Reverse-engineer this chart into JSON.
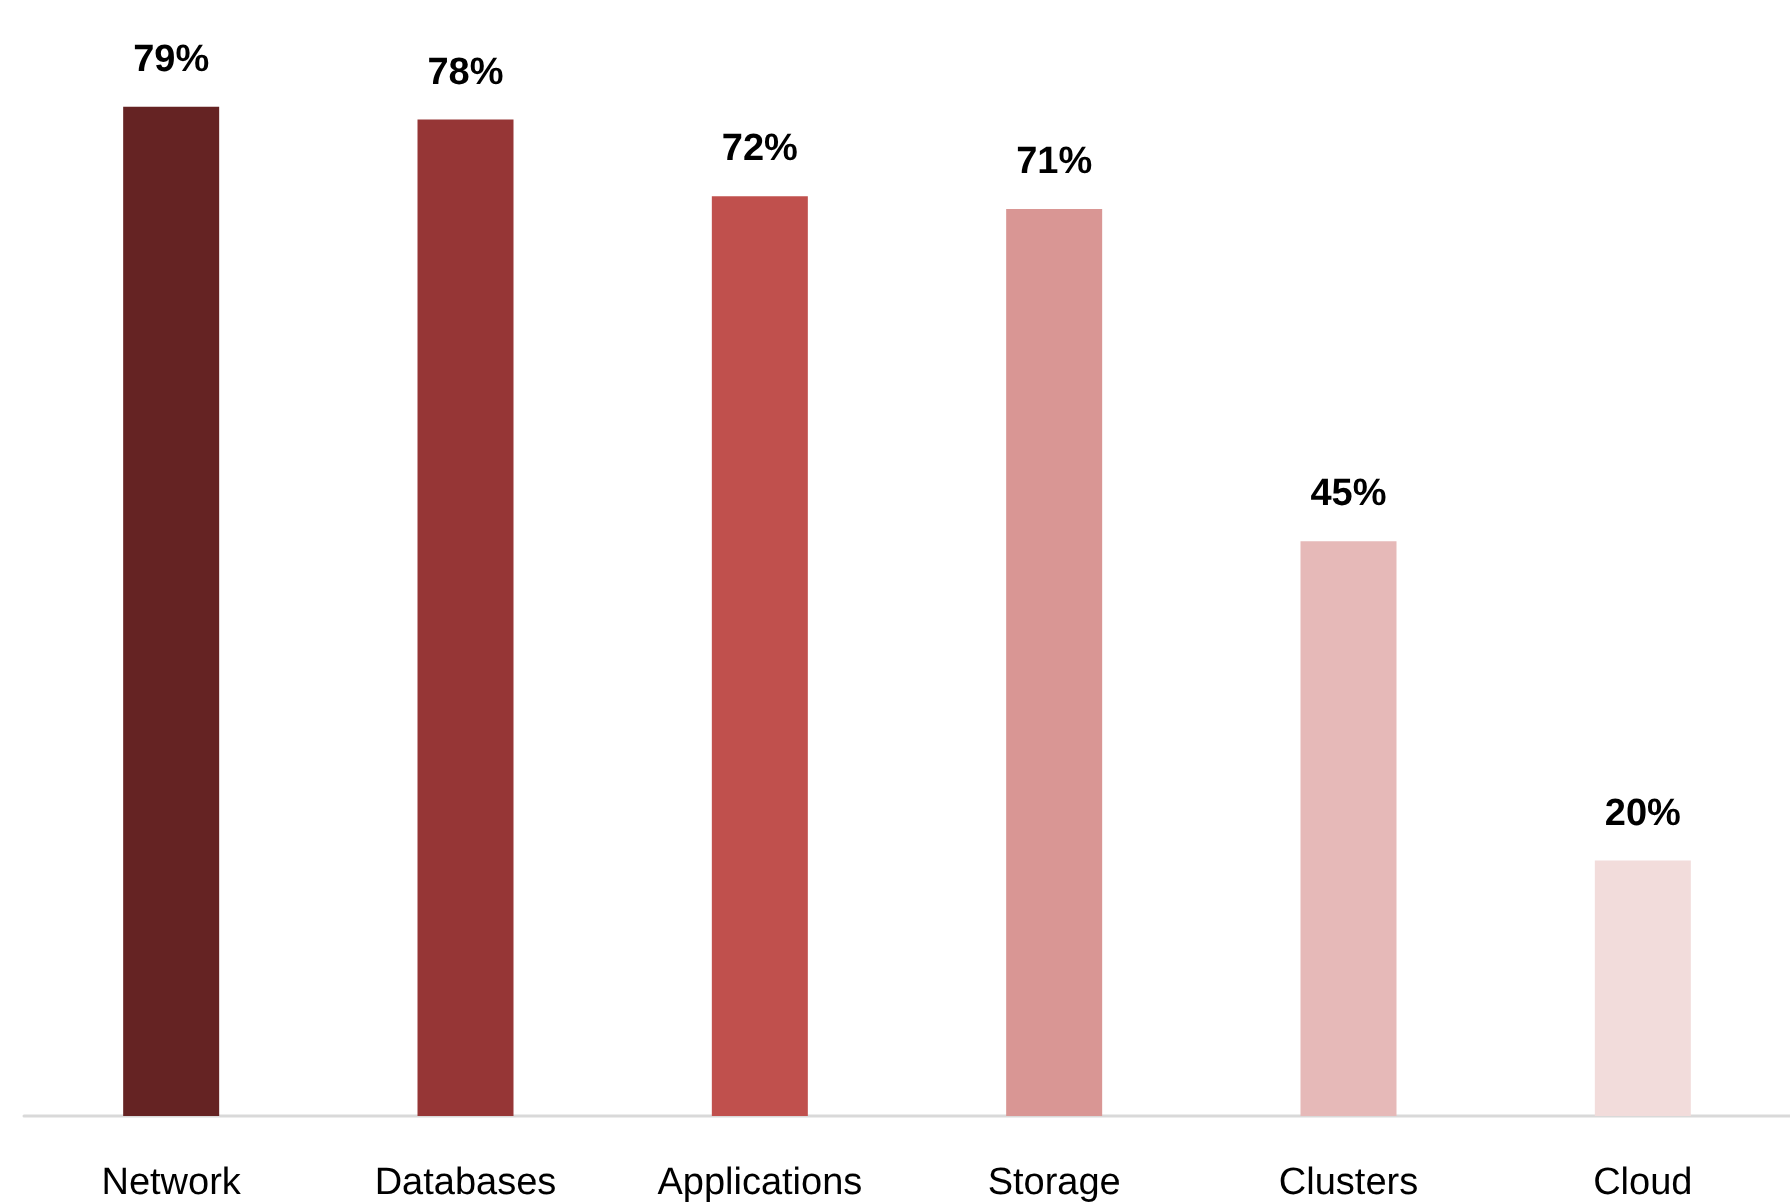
{
  "chart_data": {
    "type": "bar",
    "categories": [
      "Network",
      "Databases",
      "Applications",
      "Storage",
      "Clusters",
      "Cloud"
    ],
    "values": [
      79,
      78,
      72,
      71,
      45,
      20
    ],
    "colors": [
      "#652323",
      "#963636",
      "#c0504d",
      "#d99694",
      "#e6b9b8",
      "#f2dcdb"
    ],
    "value_labels": [
      "79%",
      "78%",
      "72%",
      "71%",
      "45%",
      "20%"
    ]
  }
}
